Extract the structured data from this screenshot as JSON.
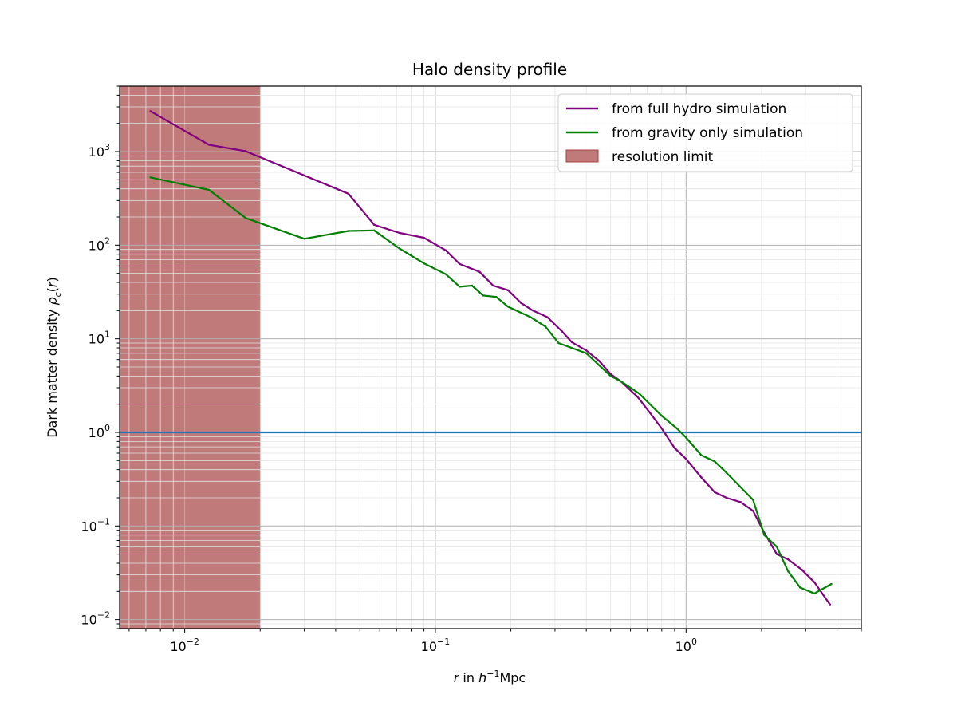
{
  "chart_data": {
    "type": "line",
    "title": "Halo density profile",
    "xlabel": "r in h⁻¹Mpc",
    "ylabel": "Dark matter density ρc(r)",
    "xscale": "log",
    "yscale": "log",
    "xlim": [
      0.0055,
      5.0
    ],
    "ylim": [
      0.008,
      5000
    ],
    "grid": true,
    "legend_position": "top-right",
    "x_ticks": [
      {
        "value": 0.01,
        "base": "10",
        "exp": "−2"
      },
      {
        "value": 0.1,
        "base": "10",
        "exp": "−1"
      },
      {
        "value": 1,
        "base": "10",
        "exp": "0"
      }
    ],
    "y_ticks": [
      {
        "value": 0.01,
        "base": "10",
        "exp": "−2"
      },
      {
        "value": 0.1,
        "base": "10",
        "exp": "−1"
      },
      {
        "value": 1,
        "base": "10",
        "exp": "0"
      },
      {
        "value": 10,
        "base": "10",
        "exp": "1"
      },
      {
        "value": 100,
        "base": "10",
        "exp": "2"
      },
      {
        "value": 1000,
        "base": "10",
        "exp": "3"
      }
    ],
    "series": [
      {
        "name": "from full hydro simulation",
        "color": "#800080",
        "x": [
          0.0073,
          0.0125,
          0.0175,
          0.045,
          0.057,
          0.072,
          0.09,
          0.11,
          0.125,
          0.15,
          0.17,
          0.195,
          0.22,
          0.245,
          0.28,
          0.32,
          0.35,
          0.4,
          0.45,
          0.5,
          0.55,
          0.64,
          0.72,
          0.8,
          0.9,
          1.0,
          1.15,
          1.3,
          1.45,
          1.65,
          1.85,
          2.05,
          2.3,
          2.55,
          2.9,
          3.25,
          3.75
        ],
        "y": [
          2700,
          1180,
          1010,
          355,
          165,
          135,
          120,
          88,
          63,
          52,
          37,
          33,
          24,
          20,
          17,
          12,
          9.2,
          7.5,
          5.8,
          4.2,
          3.5,
          2.4,
          1.6,
          1.1,
          0.68,
          0.52,
          0.33,
          0.23,
          0.2,
          0.18,
          0.145,
          0.085,
          0.05,
          0.044,
          0.034,
          0.025,
          0.0145
        ]
      },
      {
        "name": "from gravity only simulation",
        "color": "#008000",
        "x": [
          0.0073,
          0.0125,
          0.0175,
          0.03,
          0.045,
          0.057,
          0.072,
          0.09,
          0.11,
          0.125,
          0.14,
          0.155,
          0.175,
          0.195,
          0.24,
          0.275,
          0.31,
          0.4,
          0.5,
          0.55,
          0.65,
          0.8,
          0.92,
          1.0,
          1.15,
          1.3,
          1.45,
          1.85,
          2.05,
          2.3,
          2.55,
          2.85,
          3.25,
          3.8
        ],
        "y": [
          530,
          390,
          195,
          117,
          142,
          144,
          92,
          64,
          49,
          36,
          37,
          29,
          28,
          22,
          17,
          13.5,
          9,
          7,
          4,
          3.5,
          2.6,
          1.5,
          1.1,
          0.88,
          0.57,
          0.49,
          0.37,
          0.19,
          0.08,
          0.06,
          0.033,
          0.022,
          0.019,
          0.024
        ]
      }
    ],
    "hline": {
      "y": 1,
      "color": "#1f77b4"
    },
    "shaded_region": {
      "label": "resolution limit",
      "x_end": 0.02,
      "color": "#c07a7a",
      "edge": "#a94040"
    }
  }
}
